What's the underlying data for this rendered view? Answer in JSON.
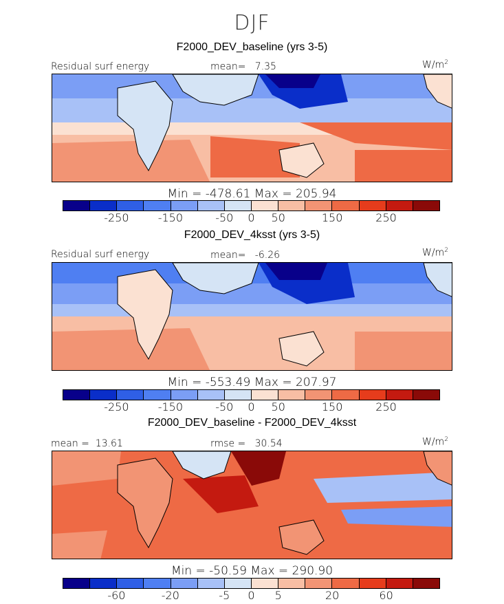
{
  "figure": {
    "season": "DJF"
  },
  "colors": [
    "#08008a",
    "#0a2ec9",
    "#2f5fe6",
    "#4f7ff2",
    "#7b9ef5",
    "#a8c1f7",
    "#d5e4f5",
    "#fbe1d2",
    "#f8bea4",
    "#f29474",
    "#ee6a45",
    "#e63c1c",
    "#c41a10",
    "#8a0a08"
  ],
  "chart_data": [
    {
      "type": "heatmap",
      "title": "F2000_DEV_baseline (yrs 3-5)",
      "variable": "Residual surf energy",
      "units_base": "W/m",
      "units_exp": "2",
      "mean_label": "mean=",
      "mean": "7.35",
      "min_text": "Min = -478.61",
      "max_text": "Max = 205.94",
      "min": -478.61,
      "max": 205.94,
      "colorbar_labels": [
        "-250",
        "-150",
        "-50",
        "0",
        "50",
        "150",
        "250"
      ]
    },
    {
      "type": "heatmap",
      "title": "F2000_DEV_4ksst (yrs 3-5)",
      "variable": "Residual surf energy",
      "units_base": "W/m",
      "units_exp": "2",
      "mean_label": "mean=",
      "mean": "-6.26",
      "min_text": "Min = -553.49",
      "max_text": "Max = 207.97",
      "min": -553.49,
      "max": 207.97,
      "colorbar_labels": [
        "-250",
        "-150",
        "-50",
        "0",
        "50",
        "150",
        "250"
      ]
    },
    {
      "type": "heatmap",
      "title": "F2000_DEV_baseline - F2000_DEV_4ksst",
      "units_base": "W/m",
      "units_exp": "2",
      "mean_label": "mean =",
      "mean": "13.61",
      "rmse_label": "rmse =",
      "rmse": "30.54",
      "min_text": "Min = -50.59",
      "max_text": "Max = 290.90",
      "min": -50.59,
      "max": 290.9,
      "colorbar_labels": [
        "-60",
        "-20",
        "-5",
        "0",
        "5",
        "20",
        "60"
      ]
    }
  ]
}
